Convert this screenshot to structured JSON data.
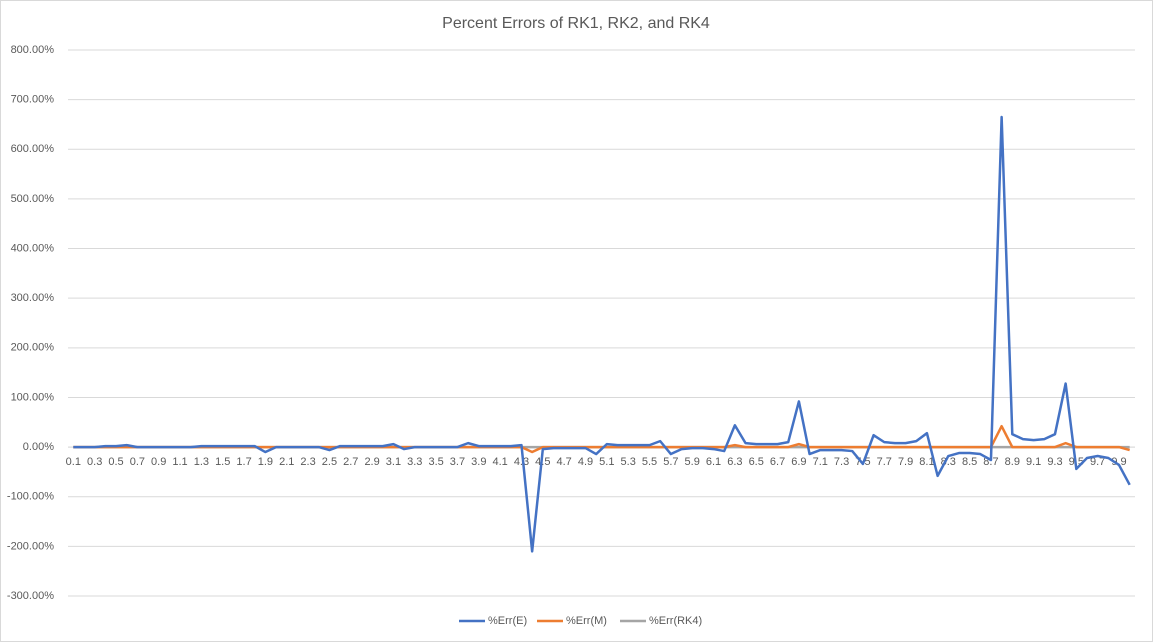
{
  "chart_data": {
    "type": "line",
    "title": "Percent Errors of RK1, RK2, and RK4",
    "categories": [
      "0.1",
      null,
      "0.3",
      null,
      "0.5",
      null,
      "0.7",
      null,
      "0.9",
      null,
      "1.1",
      null,
      "1.3",
      null,
      "1.5",
      null,
      "1.7",
      null,
      "1.9",
      null,
      "2.1",
      null,
      "2.3",
      null,
      "2.5",
      null,
      "2.7",
      null,
      "2.9",
      null,
      "3.1",
      null,
      "3.3",
      null,
      "3.5",
      null,
      "3.7",
      null,
      "3.9",
      null,
      "4.1",
      null,
      "4.3",
      null,
      "4.5",
      null,
      "4.7",
      null,
      "4.9",
      null,
      "5.1",
      null,
      "5.3",
      null,
      "5.5",
      null,
      "5.7",
      null,
      "5.9",
      null,
      "6.1",
      null,
      "6.3",
      null,
      "6.5",
      null,
      "6.7",
      null,
      "6.9",
      null,
      "7.1",
      null,
      "7.3",
      null,
      "7.5",
      null,
      "7.7",
      null,
      "7.9",
      null,
      "8.1",
      null,
      "8.3",
      null,
      "8.5",
      null,
      "8.7",
      null,
      "8.9",
      null,
      "9.1",
      null,
      "9.3",
      null,
      "9.5",
      null,
      "9.7",
      null,
      "9.9",
      null
    ],
    "series": [
      {
        "name": "%Err(E)",
        "color": "#4472c4",
        "values": [
          0,
          0,
          0,
          2,
          2,
          4,
          0,
          0,
          0,
          0,
          0,
          0,
          2,
          2,
          2,
          2,
          2,
          2,
          -10,
          0,
          0,
          0,
          0,
          0,
          -6,
          2,
          2,
          2,
          2,
          2,
          6,
          -4,
          0,
          0,
          0,
          0,
          0,
          8,
          2,
          2,
          2,
          2,
          4,
          -210,
          -4,
          -2,
          -2,
          -2,
          -2,
          -14,
          6,
          4,
          4,
          4,
          4,
          12,
          -14,
          -4,
          -2,
          -2,
          -4,
          -8,
          44,
          8,
          6,
          6,
          6,
          10,
          92,
          -14,
          -6,
          -6,
          -6,
          -8,
          -34,
          24,
          10,
          8,
          8,
          12,
          28,
          -58,
          -18,
          -12,
          -12,
          -14,
          -26,
          665,
          26,
          16,
          14,
          16,
          26,
          128,
          -44,
          -22,
          -18,
          -22,
          -36,
          -76
        ]
      },
      {
        "name": "%Err(M)",
        "color": "#ed7d31",
        "values": [
          0,
          0,
          0,
          0,
          0,
          0,
          0,
          0,
          0,
          0,
          0,
          0,
          0,
          0,
          0,
          0,
          0,
          0,
          0,
          0,
          0,
          0,
          0,
          0,
          0,
          0,
          0,
          0,
          0,
          0,
          0,
          0,
          0,
          0,
          0,
          0,
          0,
          0,
          0,
          0,
          0,
          0,
          0,
          -10,
          0,
          0,
          0,
          0,
          0,
          0,
          0,
          0,
          0,
          0,
          0,
          0,
          0,
          0,
          0,
          0,
          0,
          0,
          4,
          0,
          0,
          0,
          0,
          0,
          6,
          0,
          0,
          0,
          0,
          0,
          0,
          0,
          0,
          0,
          0,
          0,
          0,
          0,
          0,
          0,
          0,
          0,
          0,
          42,
          0,
          0,
          0,
          0,
          0,
          8,
          0,
          0,
          0,
          0,
          0,
          -6
        ]
      },
      {
        "name": "%Err(RK4)",
        "color": "#a5a5a5",
        "values": [
          0,
          0,
          0,
          0,
          0,
          0,
          0,
          0,
          0,
          0,
          0,
          0,
          0,
          0,
          0,
          0,
          0,
          0,
          0,
          0,
          0,
          0,
          0,
          0,
          0,
          0,
          0,
          0,
          0,
          0,
          0,
          0,
          0,
          0,
          0,
          0,
          0,
          0,
          0,
          0,
          0,
          0,
          0,
          0,
          0,
          0,
          0,
          0,
          0,
          0,
          0,
          0,
          0,
          0,
          0,
          0,
          0,
          0,
          0,
          0,
          0,
          0,
          0,
          0,
          0,
          0,
          0,
          0,
          0,
          0,
          0,
          0,
          0,
          0,
          0,
          0,
          0,
          0,
          0,
          0,
          0,
          0,
          0,
          0,
          0,
          0,
          0,
          0,
          0,
          0,
          0,
          0,
          0,
          0,
          0,
          0,
          0,
          0,
          0,
          0
        ]
      }
    ],
    "ylim": [
      -300,
      800
    ],
    "yticks": [
      {
        "value": -300,
        "label": "-300.00%"
      },
      {
        "value": -200,
        "label": "-200.00%"
      },
      {
        "value": -100,
        "label": "-100.00%"
      },
      {
        "value": 0,
        "label": "0.00%"
      },
      {
        "value": 100,
        "label": "100.00%"
      },
      {
        "value": 200,
        "label": "200.00%"
      },
      {
        "value": 300,
        "label": "300.00%"
      },
      {
        "value": 400,
        "label": "400.00%"
      },
      {
        "value": 500,
        "label": "500.00%"
      },
      {
        "value": 600,
        "label": "600.00%"
      },
      {
        "value": 700,
        "label": "700.00%"
      },
      {
        "value": 800,
        "label": "800.00%"
      }
    ],
    "grid": true,
    "legend": "bottom"
  }
}
